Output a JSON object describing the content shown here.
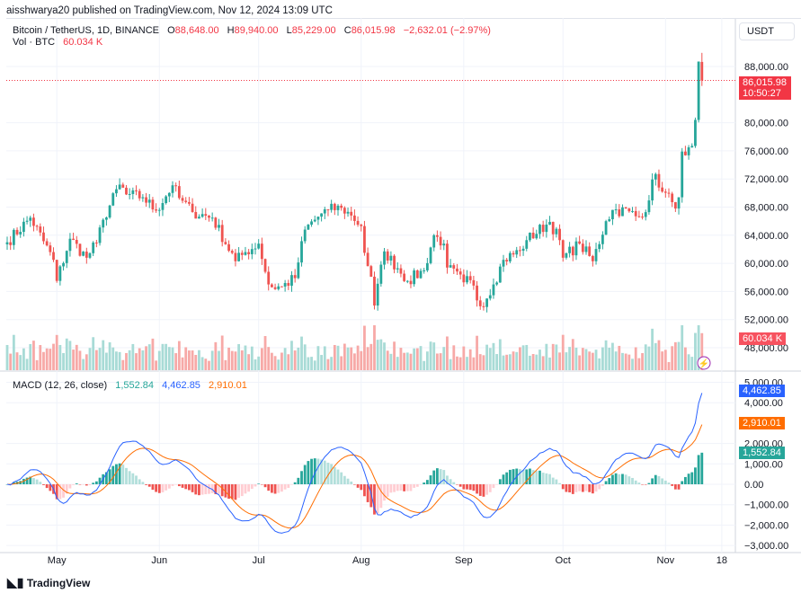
{
  "header": {
    "published": "aisshwarya20 published on TradingView.com, Nov 12, 2024 13:09 UTC"
  },
  "legend": {
    "symbol": "Bitcoin / TetherUS, 1D, BINANCE",
    "o_label": "O",
    "o": "88,648.00",
    "h_label": "H",
    "h": "89,940.00",
    "l_label": "L",
    "l": "85,229.00",
    "c_label": "C",
    "c": "86,015.98",
    "change": "−2,632.01 (−2.97%)",
    "vol_label": "Vol · BTC",
    "vol": "60.034 K",
    "macd_label": "MACD (12, 26, close)",
    "macd_hist": "1,552.84",
    "macd_line": "4,462.85",
    "macd_signal": "2,910.01"
  },
  "currency": "USDT",
  "badges": {
    "price": "86,015.98",
    "countdown": "10:50:27",
    "volume": "60.034 K",
    "macd_line": "4,462.85",
    "macd_signal": "2,910.01",
    "macd_hist": "1,552.84"
  },
  "colors": {
    "up": "#26a69a",
    "down": "#ef5350",
    "macd": "#2962ff",
    "signal": "#ff6d00",
    "hist_up": "#26a69a",
    "hist_down": "#ef5350"
  },
  "logo": "TradingView",
  "chart_data": [
    {
      "type": "candlestick",
      "y_ticks": [
        "88,000.00",
        "80,000.00",
        "76,000.00",
        "72,000.00",
        "68,000.00",
        "64,000.00",
        "60,000.00",
        "56,000.00",
        "52,000.00",
        "48,000.00"
      ],
      "ylim": [
        47000,
        90500
      ],
      "x_ticks": [
        "May",
        "Jun",
        "Jul",
        "Aug",
        "Sep",
        "Oct",
        "Nov",
        "18"
      ],
      "x_range": [
        "2024-04-16",
        "2024-11-21"
      ],
      "closes_approx": [
        [
          "2024-04-16",
          63000
        ],
        [
          "2024-04-23",
          66500
        ],
        [
          "2024-04-30",
          60500
        ],
        [
          "2024-05-01",
          57500
        ],
        [
          "2024-05-05",
          63500
        ],
        [
          "2024-05-10",
          60800
        ],
        [
          "2024-05-13",
          62900
        ],
        [
          "2024-05-15",
          66200
        ],
        [
          "2024-05-20",
          71200
        ],
        [
          "2024-05-22",
          69800
        ],
        [
          "2024-05-27",
          69400
        ],
        [
          "2024-05-31",
          67500
        ],
        [
          "2024-06-05",
          71100
        ],
        [
          "2024-06-07",
          69300
        ],
        [
          "2024-06-11",
          67300
        ],
        [
          "2024-06-17",
          66500
        ],
        [
          "2024-06-24",
          60300
        ],
        [
          "2024-06-27",
          61600
        ],
        [
          "2024-07-01",
          62800
        ],
        [
          "2024-07-04",
          57000
        ],
        [
          "2024-07-05",
          56600
        ],
        [
          "2024-07-08",
          56700
        ],
        [
          "2024-07-12",
          57900
        ],
        [
          "2024-07-15",
          64800
        ],
        [
          "2024-07-20",
          67100
        ],
        [
          "2024-07-22",
          67600
        ],
        [
          "2024-07-26",
          67900
        ],
        [
          "2024-07-29",
          66800
        ],
        [
          "2024-08-01",
          65300
        ],
        [
          "2024-08-02",
          61500
        ],
        [
          "2024-08-04",
          58100
        ],
        [
          "2024-08-05",
          54000
        ],
        [
          "2024-08-08",
          61700
        ],
        [
          "2024-08-12",
          59300
        ],
        [
          "2024-08-15",
          57500
        ],
        [
          "2024-08-20",
          59000
        ],
        [
          "2024-08-23",
          64000
        ],
        [
          "2024-08-26",
          62800
        ],
        [
          "2024-08-27",
          59400
        ],
        [
          "2024-09-01",
          57300
        ],
        [
          "2024-09-03",
          57600
        ],
        [
          "2024-09-06",
          53900
        ],
        [
          "2024-09-10",
          57000
        ],
        [
          "2024-09-13",
          60500
        ],
        [
          "2024-09-18",
          61800
        ],
        [
          "2024-09-20",
          63300
        ],
        [
          "2024-09-27",
          65900
        ],
        [
          "2024-09-30",
          63300
        ],
        [
          "2024-10-01",
          60800
        ],
        [
          "2024-10-06",
          62800
        ],
        [
          "2024-10-10",
          60300
        ],
        [
          "2024-10-14",
          66000
        ],
        [
          "2024-10-16",
          67600
        ],
        [
          "2024-10-21",
          67400
        ],
        [
          "2024-10-23",
          66700
        ],
        [
          "2024-10-25",
          66600
        ],
        [
          "2024-10-29",
          72700
        ],
        [
          "2024-10-31",
          70200
        ],
        [
          "2024-11-03",
          68700
        ],
        [
          "2024-11-04",
          67800
        ],
        [
          "2024-11-05",
          69400
        ],
        [
          "2024-11-06",
          75900
        ],
        [
          "2024-11-08",
          76500
        ],
        [
          "2024-11-09",
          76700
        ],
        [
          "2024-11-10",
          80400
        ],
        [
          "2024-11-11",
          88700
        ],
        [
          "2024-11-12",
          86015.98
        ]
      ],
      "last_candle": {
        "date": "2024-11-12",
        "open": 88648,
        "high": 89940,
        "low": 85229,
        "close": 86015.98
      }
    },
    {
      "type": "bar",
      "last_value": 60034
    },
    {
      "type": "line",
      "series": [
        {
          "last": 4462.85
        },
        {
          "last": 2910.01
        },
        {
          "last": 1552.84
        }
      ],
      "y_ticks": [
        "5,000.00",
        "4,000.00",
        "2,000.00",
        "1,000.00",
        "0.00",
        "−1,000.00",
        "−2,000.00",
        "−3,000.00"
      ],
      "ylim": [
        -3000,
        5000
      ]
    }
  ]
}
